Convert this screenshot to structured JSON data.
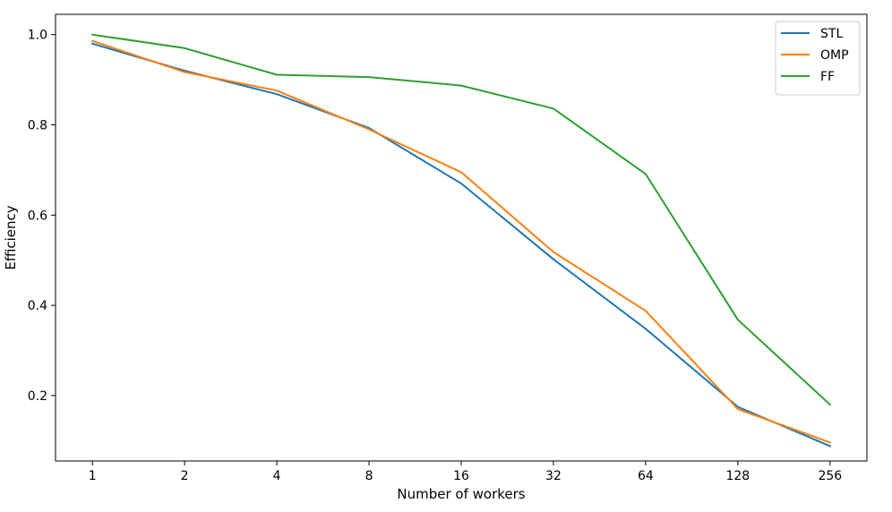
{
  "chart_data": {
    "type": "line",
    "title": "",
    "xlabel": "Number of workers",
    "ylabel": "Efficiency",
    "x_scale": "log2",
    "x": [
      1,
      2,
      4,
      8,
      16,
      32,
      64,
      128,
      256
    ],
    "x_tick_labels": [
      "1",
      "2",
      "4",
      "8",
      "16",
      "32",
      "64",
      "128",
      "256"
    ],
    "y_ticks": [
      0.2,
      0.4,
      0.6,
      0.8,
      1.0
    ],
    "y_tick_labels": [
      "0.2",
      "0.4",
      "0.6",
      "0.8",
      "1.0"
    ],
    "ylim": [
      0.055,
      1.045
    ],
    "grid": false,
    "legend_position": "top-right",
    "series": [
      {
        "name": "STL",
        "color": "#1f77b4",
        "values": [
          0.98,
          0.92,
          0.868,
          0.793,
          0.67,
          0.502,
          0.348,
          0.175,
          0.088
        ]
      },
      {
        "name": "OMP",
        "color": "#ff7f0e",
        "values": [
          0.986,
          0.917,
          0.876,
          0.79,
          0.695,
          0.518,
          0.388,
          0.17,
          0.096
        ]
      },
      {
        "name": "FF",
        "color": "#2ca02c",
        "values": [
          1.0,
          0.97,
          0.911,
          0.906,
          0.887,
          0.836,
          0.691,
          0.368,
          0.18
        ]
      }
    ]
  }
}
